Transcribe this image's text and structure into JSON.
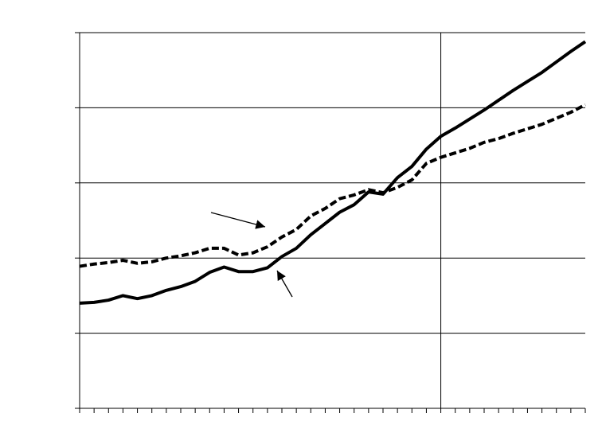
{
  "chart_data": {
    "type": "line",
    "x": [
      0,
      1,
      2,
      3,
      4,
      5,
      6,
      7,
      8,
      9,
      10,
      11,
      12,
      13,
      14,
      15,
      16,
      17,
      18,
      19,
      20,
      21,
      22,
      23,
      24,
      25,
      26,
      27,
      28,
      29,
      30,
      31,
      32,
      33,
      34,
      35
    ],
    "series": [
      {
        "color": "#000000",
        "dashed": false,
        "values": [
          1.4,
          1.41,
          1.44,
          1.5,
          1.46,
          1.5,
          1.57,
          1.62,
          1.69,
          1.81,
          1.88,
          1.82,
          1.82,
          1.87,
          2.02,
          2.13,
          2.31,
          2.46,
          2.61,
          2.71,
          2.88,
          2.85,
          3.07,
          3.22,
          3.45,
          3.62,
          3.73,
          3.85,
          3.97,
          4.1,
          4.23,
          4.35,
          4.47,
          4.61,
          4.75,
          4.88
        ]
      },
      {
        "color": "#000000",
        "dashed": true,
        "values": [
          1.89,
          1.92,
          1.94,
          1.97,
          1.93,
          1.95,
          2.0,
          2.03,
          2.07,
          2.13,
          2.13,
          2.04,
          2.07,
          2.15,
          2.28,
          2.38,
          2.56,
          2.66,
          2.79,
          2.84,
          2.91,
          2.87,
          2.94,
          3.04,
          3.26,
          3.34,
          3.4,
          3.46,
          3.54,
          3.59,
          3.66,
          3.72,
          3.78,
          3.86,
          3.94,
          4.04
        ]
      }
    ],
    "xlim": [
      0,
      35
    ],
    "xticks": [
      0,
      1,
      2,
      3,
      4,
      5,
      6,
      7,
      8,
      9,
      10,
      11,
      12,
      13,
      14,
      15,
      16,
      17,
      18,
      19,
      20,
      21,
      22,
      23,
      24,
      25,
      26,
      27,
      28,
      29,
      30,
      31,
      32,
      33,
      34,
      35
    ],
    "ylim": [
      0,
      5
    ],
    "yticks": [
      0,
      1,
      2,
      3,
      4,
      5
    ],
    "grid": true,
    "vlines": [
      25
    ]
  }
}
